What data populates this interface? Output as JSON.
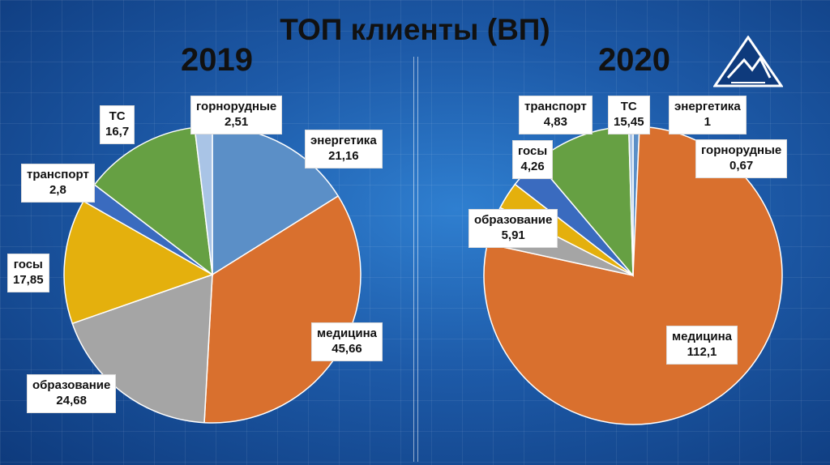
{
  "title": "ТОП клиенты (ВП)",
  "colors": {
    "энергетика": "#5b8fc7",
    "медицина": "#d9702e",
    "образование": "#a5a5a5",
    "госы": "#e4b00d",
    "транспорт": "#3a6bbf",
    "ТС": "#66a043",
    "горнорудные": "#a9c4e6"
  },
  "chart_data": [
    {
      "type": "pie",
      "title": "2019",
      "labels": [
        "энергетика",
        "медицина",
        "образование",
        "госы",
        "транспорт",
        "ТС",
        "горнорудные"
      ],
      "values": [
        21.16,
        45.66,
        24.68,
        17.85,
        2.8,
        16.7,
        2.51
      ],
      "value_labels": [
        "21,16",
        "45,66",
        "24,68",
        "17,85",
        "2,8",
        "16,7",
        "2,51"
      ]
    },
    {
      "type": "pie",
      "title": "2020",
      "labels": [
        "энергетика",
        "медицина",
        "образование",
        "госы",
        "транспорт",
        "ТС",
        "горнорудные"
      ],
      "values": [
        1,
        112.1,
        5.91,
        4.26,
        4.83,
        15.45,
        0.67
      ],
      "value_labels": [
        "1",
        "112,1",
        "5,91",
        "4,26",
        "4,83",
        "15,45",
        "0,67"
      ]
    }
  ]
}
